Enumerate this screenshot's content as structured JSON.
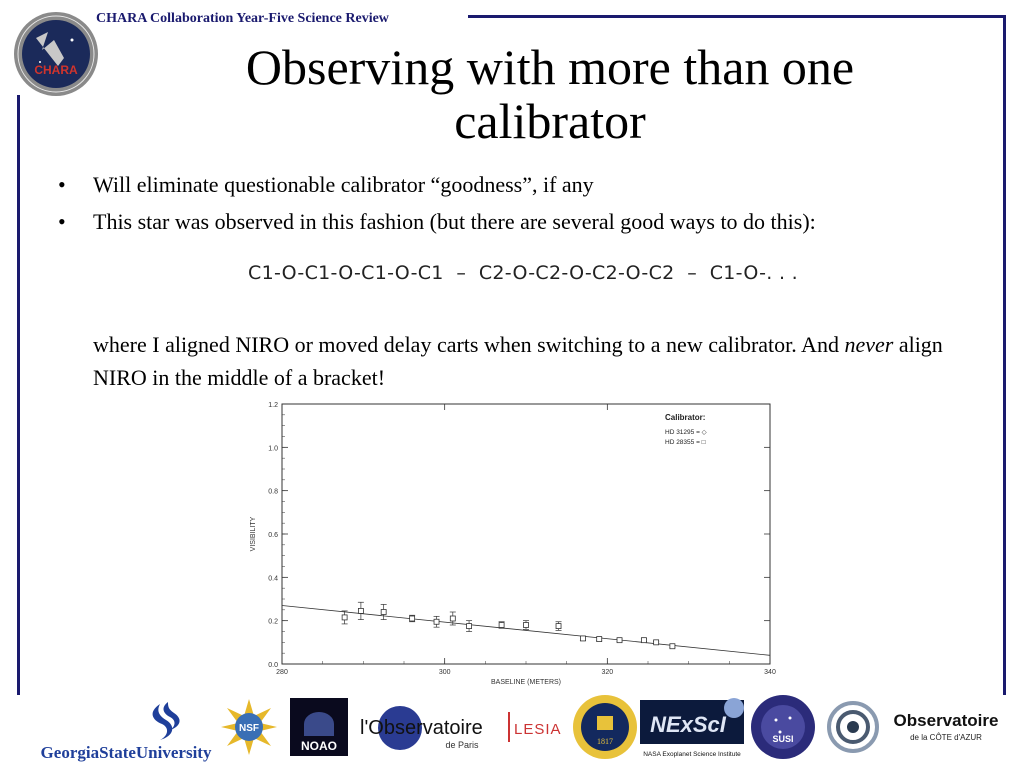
{
  "header": {
    "text": "CHARA Collaboration Year-Five Science Review"
  },
  "chara_logo": {
    "label": "CHARA"
  },
  "title": "Observing with more than one calibrator",
  "bullets": [
    "Will eliminate questionable calibrator “goodness”, if any",
    "This star was observed in this fashion (but there are several good ways to do this):"
  ],
  "sequence": "C1-O-C1-O-C1-O-C1  –  C2-O-C2-O-C2-O-C2  –  C1-O-. . .",
  "paragraph": {
    "before": "where I aligned NIRO or moved delay carts when switching to a new calibrator.  And ",
    "emphasis": "never",
    "after": " align NIRO in the middle of a bracket!"
  },
  "chart_data": {
    "type": "scatter",
    "xlabel": "BASELINE (METERS)",
    "ylabel": "VISIBILITY",
    "xlim": [
      280,
      340
    ],
    "ylim": [
      0.0,
      1.2
    ],
    "xticks": [
      280,
      300,
      320,
      340
    ],
    "yticks": [
      0.0,
      0.2,
      0.4,
      0.6,
      0.8,
      1.0,
      1.2
    ],
    "legend": {
      "title": "Calibrator:",
      "entries": [
        "HD 31295 = ◇",
        "HD 28355 = □"
      ],
      "placement": "top-right"
    },
    "series": [
      {
        "name": "HD 28355 = □",
        "points": [
          {
            "x": 287.7,
            "y": 0.215,
            "err": 0.03
          },
          {
            "x": 289.7,
            "y": 0.245,
            "err": 0.04
          },
          {
            "x": 292.5,
            "y": 0.24,
            "err": 0.035
          },
          {
            "x": 296.0,
            "y": 0.21,
            "err": 0.015
          },
          {
            "x": 299.0,
            "y": 0.195,
            "err": 0.025
          },
          {
            "x": 301.0,
            "y": 0.21,
            "err": 0.03
          },
          {
            "x": 303.0,
            "y": 0.175,
            "err": 0.025
          },
          {
            "x": 307.0,
            "y": 0.18,
            "err": 0.015
          },
          {
            "x": 310.0,
            "y": 0.18,
            "err": 0.02
          },
          {
            "x": 314.0,
            "y": 0.175,
            "err": 0.02
          },
          {
            "x": 317.0,
            "y": 0.118,
            "err": 0.01
          },
          {
            "x": 319.0,
            "y": 0.115,
            "err": 0.008
          },
          {
            "x": 321.5,
            "y": 0.11,
            "err": 0.006
          },
          {
            "x": 324.5,
            "y": 0.11,
            "err": 0.006
          },
          {
            "x": 326.0,
            "y": 0.1,
            "err": 0.005
          },
          {
            "x": 328.0,
            "y": 0.082,
            "err": 0.005
          }
        ]
      }
    ],
    "fit": {
      "x": [
        280,
        340
      ],
      "y": [
        0.27,
        0.04
      ]
    }
  },
  "logos": [
    {
      "name": "georgia-state",
      "text": "GeorgiaStateUniversity"
    },
    {
      "name": "nsf",
      "text": "NSF"
    },
    {
      "name": "noao",
      "text": "NOAO"
    },
    {
      "name": "observatoire-paris",
      "text": "l'Observatoire",
      "sub": "de Paris"
    },
    {
      "name": "lesia",
      "text": "LESIA"
    },
    {
      "name": "michigan",
      "text": "1817"
    },
    {
      "name": "nexsci",
      "text": "NExScI",
      "sub": "NASA Exoplanet Science Institute"
    },
    {
      "name": "susi",
      "text": "SUSI"
    },
    {
      "name": "cote-azur",
      "text": "Observatoire",
      "sub": "de la CÔTE d'AZUR"
    }
  ],
  "colors": {
    "navy": "#1a1a6e",
    "chara_red": "#d0342c"
  }
}
